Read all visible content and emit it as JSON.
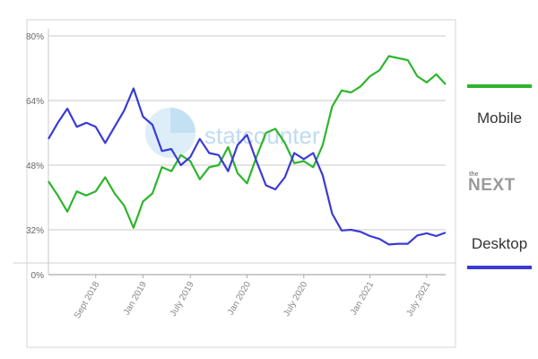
{
  "chart_data": {
    "type": "line",
    "title": "",
    "xlabel": "",
    "ylabel": "",
    "x_tick_labels": [
      "Sept 2018",
      "Jan 2019",
      "July 2019",
      "Jan 2020",
      "July 2020",
      "Jan 2021",
      "July 2021"
    ],
    "y_tick_labels": [
      "0%",
      "32%",
      "48%",
      "64%",
      "80%"
    ],
    "y_axis_note": "broken axis: 0% to 32% is compressed",
    "grid": true,
    "legend_position": "right",
    "watermark": "statcounter",
    "series": [
      {
        "name": "Mobile",
        "color": "#2db52d",
        "values": [
          44,
          40.5,
          36.5,
          41.5,
          40.5,
          41.5,
          45,
          41,
          38,
          32.5,
          39,
          41,
          47.5,
          46.5,
          50.5,
          49,
          44.5,
          47.5,
          48,
          52.5,
          46,
          43.5,
          50,
          56,
          57,
          53.5,
          48.5,
          49,
          47.5,
          53,
          62.5,
          66.5,
          66,
          67.5,
          70,
          71.5,
          75,
          74.5,
          74,
          70,
          68.5,
          70.5,
          68
        ]
      },
      {
        "name": "Desktop",
        "color": "#3b3bd6",
        "values": [
          54.5,
          58.5,
          62,
          57.5,
          58.5,
          57.5,
          53.5,
          57.5,
          61.5,
          67,
          60,
          58,
          51.5,
          52,
          48,
          50,
          54.5,
          51,
          50.5,
          46.5,
          53,
          55.5,
          49,
          43,
          42,
          45,
          51,
          49.5,
          51,
          45.5,
          36,
          31.5,
          32,
          30.5,
          27.5,
          25.5,
          21.5,
          22,
          22,
          28,
          29.5,
          27.5,
          30
        ]
      }
    ]
  },
  "legend": {
    "mobile_label": "Mobile",
    "desktop_label": "Desktop",
    "mobile_color": "#2db52d",
    "desktop_color": "#3b3bd6"
  },
  "brand": {
    "small_text": "the",
    "main_text": "NEXT"
  }
}
